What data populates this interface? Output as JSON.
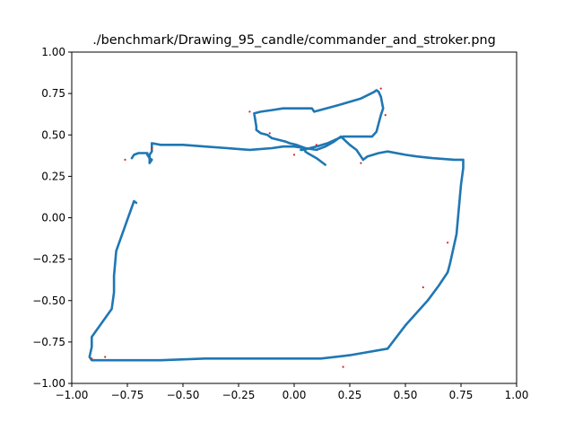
{
  "chart_data": {
    "type": "line",
    "title": "./benchmark/Drawing_95_candle/commander_and_stroker.png",
    "xlabel": "",
    "ylabel": "",
    "xlim": [
      -1.0,
      1.0
    ],
    "ylim": [
      -1.0,
      1.0
    ],
    "xticks": [
      -1.0,
      -0.75,
      -0.5,
      -0.25,
      0.0,
      0.25,
      0.5,
      0.75,
      1.0
    ],
    "xtick_labels": [
      "−1.00",
      "−0.75",
      "−0.50",
      "−0.25",
      "0.00",
      "0.25",
      "0.50",
      "0.75",
      "1.00"
    ],
    "yticks": [
      -1.0,
      -0.75,
      -0.5,
      -0.25,
      0.0,
      0.25,
      0.5,
      0.75,
      1.0
    ],
    "ytick_labels": [
      "−1.00",
      "−0.75",
      "−0.50",
      "−0.25",
      "0.00",
      "0.25",
      "0.50",
      "0.75",
      "1.00"
    ],
    "grid": false,
    "legend": "none",
    "series": [
      {
        "color": "#1f77b4",
        "style": "line",
        "x": [
          -0.71,
          -0.72,
          -0.8,
          -0.81,
          -0.81,
          -0.82,
          -0.82,
          -0.91,
          -0.91,
          -0.92,
          -0.91,
          -0.9,
          -0.8,
          -0.6,
          -0.4,
          -0.2,
          -0.1,
          0.05,
          0.12,
          0.25,
          0.42,
          0.5,
          0.6,
          0.65,
          0.69,
          0.7,
          0.73,
          0.74,
          0.75,
          0.76,
          0.76,
          0.72,
          0.62,
          0.55,
          0.5,
          0.42,
          0.38,
          0.33,
          0.31
        ],
        "y": [
          0.09,
          0.1,
          -0.2,
          -0.35,
          -0.45,
          -0.55,
          -0.55,
          -0.72,
          -0.78,
          -0.84,
          -0.86,
          -0.86,
          -0.86,
          -0.86,
          -0.85,
          -0.85,
          -0.85,
          -0.85,
          -0.85,
          -0.83,
          -0.79,
          -0.65,
          -0.5,
          -0.41,
          -0.33,
          -0.28,
          -0.1,
          0.05,
          0.2,
          0.3,
          0.35,
          0.35,
          0.36,
          0.37,
          0.38,
          0.4,
          0.39,
          0.37,
          0.35
        ]
      },
      {
        "color": "#1f77b4",
        "style": "line",
        "x": [
          0.31,
          0.3,
          0.28,
          0.25,
          0.21,
          0.18,
          0.14,
          0.1,
          0.05,
          0.0,
          -0.05,
          -0.1,
          -0.2,
          -0.3,
          -0.4,
          -0.5,
          -0.6,
          -0.64,
          -0.64,
          -0.65,
          -0.65,
          -0.64,
          -0.65,
          -0.66,
          -0.66,
          -0.7,
          -0.72,
          -0.73
        ],
        "y": [
          0.35,
          0.37,
          0.41,
          0.44,
          0.49,
          0.46,
          0.43,
          0.41,
          0.42,
          0.43,
          0.43,
          0.42,
          0.41,
          0.42,
          0.43,
          0.44,
          0.44,
          0.45,
          0.4,
          0.38,
          0.33,
          0.35,
          0.36,
          0.38,
          0.39,
          0.39,
          0.38,
          0.36
        ]
      },
      {
        "color": "#1f77b4",
        "style": "line",
        "x": [
          0.14,
          0.13,
          0.1,
          0.06,
          0.05,
          0.05,
          0.01,
          -0.02,
          -0.04,
          -0.1,
          -0.12,
          -0.15,
          -0.17,
          -0.17,
          -0.18,
          -0.15,
          -0.1,
          -0.05,
          0.0,
          0.05,
          0.08,
          0.09,
          0.2,
          0.3,
          0.36,
          0.37,
          0.38,
          0.39,
          0.4,
          0.39,
          0.38,
          0.37,
          0.35,
          0.3,
          0.25,
          0.22,
          0.2,
          0.15,
          0.1,
          0.07,
          0.04,
          0.03
        ],
        "y": [
          0.32,
          0.33,
          0.36,
          0.39,
          0.4,
          0.42,
          0.44,
          0.45,
          0.46,
          0.48,
          0.5,
          0.51,
          0.53,
          0.55,
          0.63,
          0.64,
          0.65,
          0.66,
          0.66,
          0.66,
          0.66,
          0.64,
          0.68,
          0.72,
          0.76,
          0.77,
          0.76,
          0.73,
          0.66,
          0.62,
          0.57,
          0.52,
          0.49,
          0.49,
          0.49,
          0.49,
          0.48,
          0.45,
          0.43,
          0.42,
          0.41,
          0.41
        ]
      },
      {
        "color": "#d62728",
        "style": "markers",
        "x": [
          -0.76,
          0.0,
          0.22,
          -0.11,
          0.41,
          0.39,
          0.3,
          0.69,
          0.58,
          0.1,
          -0.2,
          -0.64,
          -0.91,
          -0.85
        ],
        "y": [
          0.35,
          0.38,
          -0.9,
          0.51,
          0.62,
          0.78,
          0.33,
          -0.15,
          -0.42,
          0.44,
          0.64,
          0.42,
          -0.85,
          -0.84
        ]
      }
    ]
  }
}
